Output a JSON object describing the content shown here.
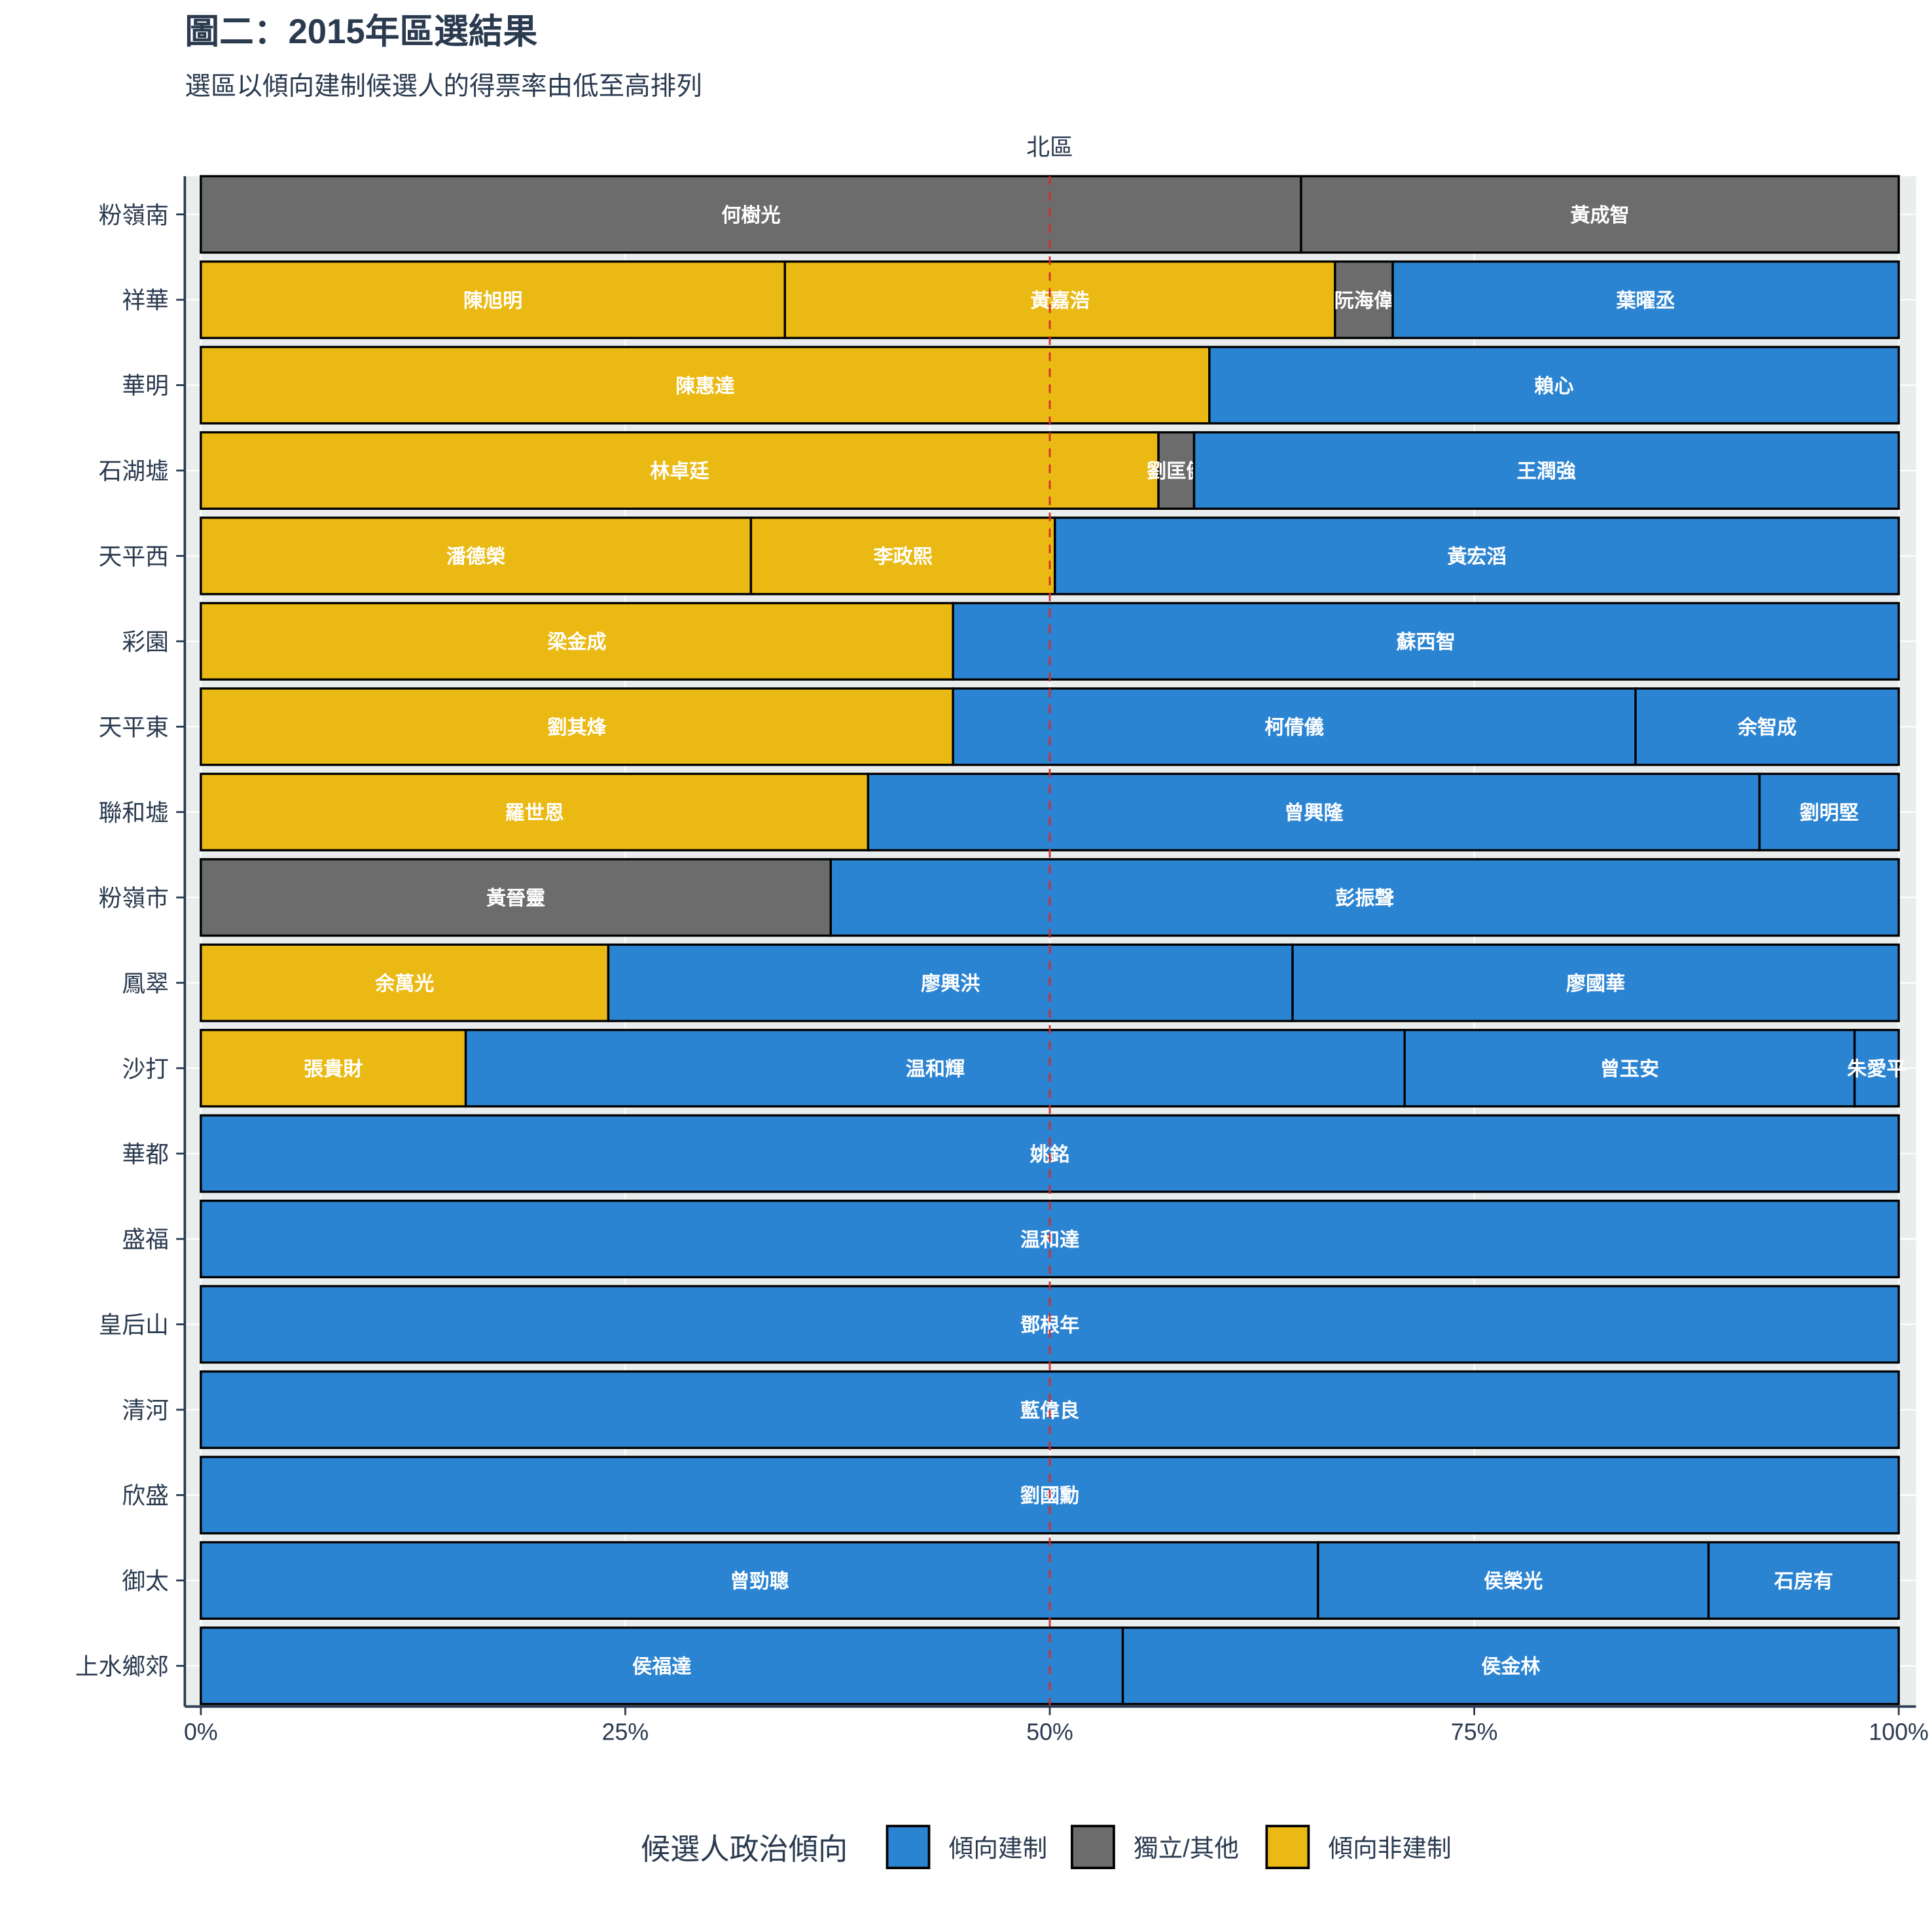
{
  "colors": {
    "pro": "#2b84d2",
    "ind": "#6c6c6c",
    "non": "#ebb913",
    "reference_line": "#d62b2b",
    "panel_bg": "#e9eded"
  },
  "chart_data": {
    "type": "bar",
    "orientation": "horizontal",
    "stacked": true,
    "normalized": true,
    "title": "圖二：2015年區選結果",
    "subtitle": "選區以傾向建制候選人的得票率由低至高排列",
    "facet_label": "北區",
    "xlabel": "",
    "ylabel": "",
    "xlim": [
      0,
      1
    ],
    "x_ticks": [
      "0%",
      "25%",
      "50%",
      "75%",
      "100%"
    ],
    "x_tick_values": [
      0,
      0.25,
      0.5,
      0.75,
      1
    ],
    "reference_line": {
      "x": 0.5,
      "style": "dashed"
    },
    "grid": true,
    "legend": {
      "title": "候選人政治傾向",
      "placement": "bottom",
      "entries": [
        {
          "key": "pro",
          "label": "傾向建制"
        },
        {
          "key": "ind",
          "label": "獨立/其他"
        },
        {
          "key": "non",
          "label": "傾向非建制"
        }
      ]
    },
    "categories": [
      "粉嶺南",
      "祥華",
      "華明",
      "石湖墟",
      "天平西",
      "彩園",
      "天平東",
      "聯和墟",
      "粉嶺市",
      "鳳翠",
      "沙打",
      "華都",
      "盛福",
      "皇后山",
      "清河",
      "欣盛",
      "御太",
      "上水鄉郊"
    ],
    "rows": [
      {
        "district": "粉嶺南",
        "segments": [
          {
            "name": "何樹光",
            "camp": "ind",
            "share": 0.648
          },
          {
            "name": "黃成智",
            "camp": "ind",
            "share": 0.352
          }
        ]
      },
      {
        "district": "祥華",
        "segments": [
          {
            "name": "陳旭明",
            "camp": "non",
            "share": 0.344
          },
          {
            "name": "黃嘉浩",
            "camp": "non",
            "share": 0.324
          },
          {
            "name": "阮海偉",
            "camp": "ind",
            "share": 0.034
          },
          {
            "name": "葉曜丞",
            "camp": "pro",
            "share": 0.298
          }
        ]
      },
      {
        "district": "華明",
        "segments": [
          {
            "name": "陳惠達",
            "camp": "non",
            "share": 0.594
          },
          {
            "name": "賴心",
            "camp": "pro",
            "share": 0.406
          }
        ]
      },
      {
        "district": "石湖墟",
        "segments": [
          {
            "name": "林卓廷",
            "camp": "non",
            "share": 0.564
          },
          {
            "name": "劉匡健",
            "camp": "ind",
            "share": 0.021
          },
          {
            "name": "王潤強",
            "camp": "pro",
            "share": 0.415
          }
        ]
      },
      {
        "district": "天平西",
        "segments": [
          {
            "name": "潘德榮",
            "camp": "non",
            "share": 0.324
          },
          {
            "name": "李政熙",
            "camp": "non",
            "share": 0.179
          },
          {
            "name": "黃宏滔",
            "camp": "pro",
            "share": 0.497
          }
        ]
      },
      {
        "district": "彩園",
        "segments": [
          {
            "name": "梁金成",
            "camp": "non",
            "share": 0.443
          },
          {
            "name": "蘇西智",
            "camp": "pro",
            "share": 0.557
          }
        ]
      },
      {
        "district": "天平東",
        "segments": [
          {
            "name": "劉其烽",
            "camp": "non",
            "share": 0.443
          },
          {
            "name": "柯倩儀",
            "camp": "pro",
            "share": 0.402
          },
          {
            "name": "余智成",
            "camp": "pro",
            "share": 0.155
          }
        ]
      },
      {
        "district": "聯和墟",
        "segments": [
          {
            "name": "羅世恩",
            "camp": "non",
            "share": 0.393
          },
          {
            "name": "曾興隆",
            "camp": "pro",
            "share": 0.525
          },
          {
            "name": "劉明堅",
            "camp": "pro",
            "share": 0.082
          }
        ]
      },
      {
        "district": "粉嶺市",
        "segments": [
          {
            "name": "黃晉靈",
            "camp": "ind",
            "share": 0.371
          },
          {
            "name": "彭振聲",
            "camp": "pro",
            "share": 0.629
          }
        ]
      },
      {
        "district": "鳳翠",
        "segments": [
          {
            "name": "余萬光",
            "camp": "non",
            "share": 0.24
          },
          {
            "name": "廖興洪",
            "camp": "pro",
            "share": 0.403
          },
          {
            "name": "廖國華",
            "camp": "pro",
            "share": 0.357
          }
        ]
      },
      {
        "district": "沙打",
        "segments": [
          {
            "name": "張貴財",
            "camp": "non",
            "share": 0.156
          },
          {
            "name": "温和輝",
            "camp": "pro",
            "share": 0.553
          },
          {
            "name": "曾玉安",
            "camp": "pro",
            "share": 0.265
          },
          {
            "name": "朱愛平",
            "camp": "pro",
            "share": 0.026
          }
        ]
      },
      {
        "district": "華都",
        "segments": [
          {
            "name": "姚銘",
            "camp": "pro",
            "share": 1.0
          }
        ]
      },
      {
        "district": "盛福",
        "segments": [
          {
            "name": "温和達",
            "camp": "pro",
            "share": 1.0
          }
        ]
      },
      {
        "district": "皇后山",
        "segments": [
          {
            "name": "鄧根年",
            "camp": "pro",
            "share": 1.0
          }
        ]
      },
      {
        "district": "清河",
        "segments": [
          {
            "name": "藍偉良",
            "camp": "pro",
            "share": 1.0
          }
        ]
      },
      {
        "district": "欣盛",
        "segments": [
          {
            "name": "劉國勳",
            "camp": "pro",
            "share": 1.0
          }
        ]
      },
      {
        "district": "御太",
        "segments": [
          {
            "name": "曾勁聰",
            "camp": "pro",
            "share": 0.658
          },
          {
            "name": "侯榮光",
            "camp": "pro",
            "share": 0.23
          },
          {
            "name": "石房有",
            "camp": "pro",
            "share": 0.112
          }
        ]
      },
      {
        "district": "上水鄉郊",
        "segments": [
          {
            "name": "侯福達",
            "camp": "pro",
            "share": 0.543
          },
          {
            "name": "侯金林",
            "camp": "pro",
            "share": 0.457
          }
        ]
      }
    ]
  }
}
